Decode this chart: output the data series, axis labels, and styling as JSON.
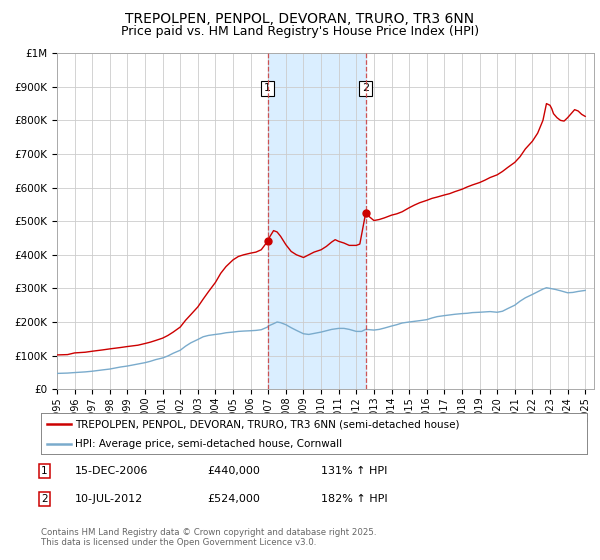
{
  "title": "TREPOLPEN, PENPOL, DEVORAN, TRURO, TR3 6NN",
  "subtitle": "Price paid vs. HM Land Registry's House Price Index (HPI)",
  "title_fontsize": 10,
  "subtitle_fontsize": 9,
  "background_color": "#ffffff",
  "plot_bg_color": "#ffffff",
  "grid_color": "#cccccc",
  "red_line_color": "#cc0000",
  "blue_line_color": "#7aabcc",
  "highlight_bg": "#daeeff",
  "legend_line1": "TREPOLPEN, PENPOL, DEVORAN, TRURO, TR3 6NN (semi-detached house)",
  "legend_line2": "HPI: Average price, semi-detached house, Cornwall",
  "footer": "Contains HM Land Registry data © Crown copyright and database right 2025.\nThis data is licensed under the Open Government Licence v3.0.",
  "xmin": 1995.0,
  "xmax": 2025.5,
  "ymin": 0,
  "ymax": 1000000,
  "yticks": [
    0,
    100000,
    200000,
    300000,
    400000,
    500000,
    600000,
    700000,
    800000,
    900000,
    1000000
  ],
  "ytick_labels": [
    "£0",
    "£100K",
    "£200K",
    "£300K",
    "£400K",
    "£500K",
    "£600K",
    "£700K",
    "£800K",
    "£900K",
    "£1M"
  ],
  "xticks": [
    1995,
    1996,
    1997,
    1998,
    1999,
    2000,
    2001,
    2002,
    2003,
    2004,
    2005,
    2006,
    2007,
    2008,
    2009,
    2010,
    2011,
    2012,
    2013,
    2014,
    2015,
    2016,
    2017,
    2018,
    2019,
    2020,
    2021,
    2022,
    2023,
    2024,
    2025
  ],
  "marker1_x": 2006.96,
  "marker1_y": 440000,
  "marker2_x": 2012.53,
  "marker2_y": 524000,
  "vline1_x": 2006.96,
  "vline2_x": 2012.53,
  "ann1_date": "15-DEC-2006",
  "ann1_price": "£440,000",
  "ann1_pct": "131% ↑ HPI",
  "ann2_date": "10-JUL-2012",
  "ann2_price": "£524,000",
  "ann2_pct": "182% ↑ HPI",
  "red_data": [
    [
      1995.0,
      102000
    ],
    [
      1995.3,
      102500
    ],
    [
      1995.6,
      103000
    ],
    [
      1996.0,
      108000
    ],
    [
      1996.3,
      109000
    ],
    [
      1996.6,
      110000
    ],
    [
      1997.0,
      113000
    ],
    [
      1997.3,
      115000
    ],
    [
      1997.6,
      117000
    ],
    [
      1998.0,
      120000
    ],
    [
      1998.3,
      122000
    ],
    [
      1998.6,
      124000
    ],
    [
      1999.0,
      127000
    ],
    [
      1999.3,
      129000
    ],
    [
      1999.6,
      131000
    ],
    [
      2000.0,
      136000
    ],
    [
      2000.3,
      140000
    ],
    [
      2000.6,
      145000
    ],
    [
      2001.0,
      152000
    ],
    [
      2001.3,
      160000
    ],
    [
      2001.6,
      170000
    ],
    [
      2002.0,
      185000
    ],
    [
      2002.3,
      205000
    ],
    [
      2002.6,
      222000
    ],
    [
      2003.0,
      245000
    ],
    [
      2003.3,
      268000
    ],
    [
      2003.6,
      290000
    ],
    [
      2004.0,
      318000
    ],
    [
      2004.3,
      345000
    ],
    [
      2004.6,
      365000
    ],
    [
      2005.0,
      385000
    ],
    [
      2005.3,
      395000
    ],
    [
      2005.6,
      400000
    ],
    [
      2006.0,
      405000
    ],
    [
      2006.3,
      408000
    ],
    [
      2006.6,
      415000
    ],
    [
      2006.96,
      440000
    ],
    [
      2007.1,
      455000
    ],
    [
      2007.3,
      472000
    ],
    [
      2007.5,
      468000
    ],
    [
      2007.7,
      455000
    ],
    [
      2008.0,
      430000
    ],
    [
      2008.3,
      410000
    ],
    [
      2008.6,
      400000
    ],
    [
      2009.0,
      392000
    ],
    [
      2009.3,
      400000
    ],
    [
      2009.6,
      408000
    ],
    [
      2010.0,
      415000
    ],
    [
      2010.3,
      425000
    ],
    [
      2010.6,
      438000
    ],
    [
      2010.8,
      445000
    ],
    [
      2011.0,
      440000
    ],
    [
      2011.3,
      435000
    ],
    [
      2011.6,
      428000
    ],
    [
      2012.0,
      428000
    ],
    [
      2012.2,
      432000
    ],
    [
      2012.53,
      524000
    ],
    [
      2012.7,
      515000
    ],
    [
      2013.0,
      502000
    ],
    [
      2013.3,
      505000
    ],
    [
      2013.6,
      510000
    ],
    [
      2014.0,
      518000
    ],
    [
      2014.3,
      522000
    ],
    [
      2014.6,
      528000
    ],
    [
      2015.0,
      540000
    ],
    [
      2015.3,
      548000
    ],
    [
      2015.6,
      555000
    ],
    [
      2016.0,
      562000
    ],
    [
      2016.3,
      568000
    ],
    [
      2016.6,
      572000
    ],
    [
      2017.0,
      578000
    ],
    [
      2017.3,
      582000
    ],
    [
      2017.6,
      588000
    ],
    [
      2018.0,
      595000
    ],
    [
      2018.3,
      602000
    ],
    [
      2018.6,
      608000
    ],
    [
      2019.0,
      615000
    ],
    [
      2019.3,
      622000
    ],
    [
      2019.6,
      630000
    ],
    [
      2020.0,
      638000
    ],
    [
      2020.3,
      648000
    ],
    [
      2020.6,
      660000
    ],
    [
      2021.0,
      675000
    ],
    [
      2021.3,
      692000
    ],
    [
      2021.6,
      715000
    ],
    [
      2022.0,
      738000
    ],
    [
      2022.3,
      762000
    ],
    [
      2022.6,
      800000
    ],
    [
      2022.8,
      850000
    ],
    [
      2023.0,
      845000
    ],
    [
      2023.1,
      835000
    ],
    [
      2023.2,
      820000
    ],
    [
      2023.4,
      808000
    ],
    [
      2023.6,
      800000
    ],
    [
      2023.8,
      798000
    ],
    [
      2024.0,
      808000
    ],
    [
      2024.2,
      820000
    ],
    [
      2024.4,
      832000
    ],
    [
      2024.6,
      828000
    ],
    [
      2024.8,
      818000
    ],
    [
      2025.0,
      812000
    ]
  ],
  "blue_data": [
    [
      1995.0,
      47000
    ],
    [
      1995.3,
      47500
    ],
    [
      1995.6,
      48000
    ],
    [
      1996.0,
      49500
    ],
    [
      1996.3,
      50500
    ],
    [
      1996.6,
      51500
    ],
    [
      1997.0,
      53500
    ],
    [
      1997.3,
      55500
    ],
    [
      1997.6,
      57500
    ],
    [
      1998.0,
      60000
    ],
    [
      1998.3,
      63000
    ],
    [
      1998.6,
      66000
    ],
    [
      1999.0,
      69000
    ],
    [
      1999.3,
      72000
    ],
    [
      1999.6,
      75000
    ],
    [
      2000.0,
      79000
    ],
    [
      2000.3,
      83000
    ],
    [
      2000.6,
      88000
    ],
    [
      2001.0,
      93000
    ],
    [
      2001.3,
      99000
    ],
    [
      2001.6,
      107000
    ],
    [
      2002.0,
      116000
    ],
    [
      2002.3,
      128000
    ],
    [
      2002.6,
      138000
    ],
    [
      2003.0,
      148000
    ],
    [
      2003.3,
      156000
    ],
    [
      2003.6,
      160000
    ],
    [
      2004.0,
      163000
    ],
    [
      2004.3,
      165000
    ],
    [
      2004.6,
      168000
    ],
    [
      2005.0,
      170000
    ],
    [
      2005.3,
      172000
    ],
    [
      2005.6,
      173000
    ],
    [
      2006.0,
      174000
    ],
    [
      2006.3,
      175000
    ],
    [
      2006.6,
      177000
    ],
    [
      2006.96,
      185000
    ],
    [
      2007.0,
      188000
    ],
    [
      2007.3,
      195000
    ],
    [
      2007.5,
      200000
    ],
    [
      2007.7,
      198000
    ],
    [
      2008.0,
      192000
    ],
    [
      2008.3,
      183000
    ],
    [
      2008.6,
      175000
    ],
    [
      2009.0,
      165000
    ],
    [
      2009.3,
      163000
    ],
    [
      2009.6,
      166000
    ],
    [
      2010.0,
      170000
    ],
    [
      2010.3,
      174000
    ],
    [
      2010.6,
      178000
    ],
    [
      2011.0,
      181000
    ],
    [
      2011.3,
      181000
    ],
    [
      2011.6,
      178000
    ],
    [
      2012.0,
      172000
    ],
    [
      2012.3,
      172000
    ],
    [
      2012.53,
      178000
    ],
    [
      2013.0,
      176000
    ],
    [
      2013.3,
      178000
    ],
    [
      2013.6,
      182000
    ],
    [
      2014.0,
      188000
    ],
    [
      2014.3,
      192000
    ],
    [
      2014.6,
      197000
    ],
    [
      2015.0,
      200000
    ],
    [
      2015.3,
      202000
    ],
    [
      2015.6,
      204000
    ],
    [
      2016.0,
      207000
    ],
    [
      2016.3,
      212000
    ],
    [
      2016.6,
      216000
    ],
    [
      2017.0,
      219000
    ],
    [
      2017.3,
      221000
    ],
    [
      2017.6,
      223000
    ],
    [
      2018.0,
      225000
    ],
    [
      2018.3,
      226000
    ],
    [
      2018.6,
      228000
    ],
    [
      2019.0,
      229000
    ],
    [
      2019.3,
      230000
    ],
    [
      2019.6,
      231000
    ],
    [
      2020.0,
      229000
    ],
    [
      2020.3,
      232000
    ],
    [
      2020.6,
      240000
    ],
    [
      2021.0,
      250000
    ],
    [
      2021.3,
      262000
    ],
    [
      2021.6,
      272000
    ],
    [
      2022.0,
      282000
    ],
    [
      2022.3,
      290000
    ],
    [
      2022.6,
      298000
    ],
    [
      2022.8,
      302000
    ],
    [
      2023.0,
      300000
    ],
    [
      2023.3,
      297000
    ],
    [
      2023.6,
      293000
    ],
    [
      2024.0,
      287000
    ],
    [
      2024.3,
      288000
    ],
    [
      2024.6,
      291000
    ],
    [
      2025.0,
      294000
    ]
  ]
}
